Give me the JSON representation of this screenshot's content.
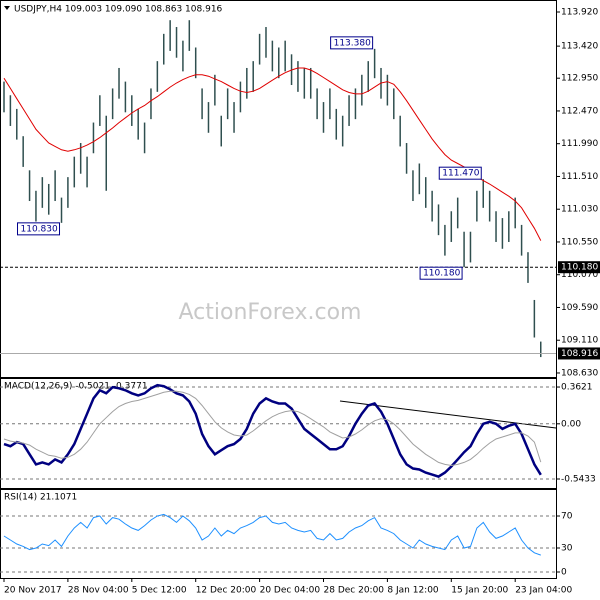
{
  "chart_data": [
    {
      "type": "hilo",
      "title": "USDJPY,H4  109.003 109.090 108.863 108.916",
      "watermark": "ActionForex.com",
      "categories": [
        "20 Nov 2017",
        null,
        null,
        null,
        null,
        null,
        null,
        null,
        null,
        null,
        "28 Nov 04:00",
        null,
        null,
        null,
        null,
        null,
        null,
        null,
        null,
        null,
        "5 Dec 12:00",
        null,
        null,
        null,
        null,
        null,
        null,
        null,
        null,
        null,
        "12 Dec 20:00",
        null,
        null,
        null,
        null,
        null,
        null,
        null,
        null,
        null,
        "20 Dec 04:00",
        null,
        null,
        null,
        null,
        null,
        null,
        null,
        null,
        null,
        "28 Dec 20:00",
        null,
        null,
        null,
        null,
        null,
        null,
        null,
        null,
        null,
        "8 Jan 12:00",
        null,
        null,
        null,
        null,
        null,
        null,
        null,
        null,
        null,
        "15 Jan 20:00",
        null,
        null,
        null,
        null,
        null,
        null,
        null,
        null,
        null,
        "23 Jan 04:00",
        null,
        null,
        null,
        null
      ],
      "high": [
        112.9,
        112.7,
        112.5,
        112.1,
        111.6,
        111.3,
        111.5,
        111.4,
        111.6,
        111.2,
        111.5,
        111.8,
        112.0,
        111.8,
        112.3,
        112.7,
        112.4,
        112.8,
        113.1,
        112.9,
        112.7,
        112.5,
        112.3,
        112.8,
        113.2,
        113.6,
        113.8,
        113.7,
        113.5,
        113.8,
        113.4,
        112.8,
        112.6,
        113.0,
        112.4,
        112.8,
        112.6,
        112.9,
        113.1,
        113.2,
        113.6,
        113.7,
        113.5,
        113.4,
        113.5,
        113.3,
        113.2,
        113.1,
        113.1,
        112.8,
        112.6,
        112.8,
        112.5,
        112.4,
        112.7,
        112.8,
        113.0,
        113.2,
        113.38,
        113.1,
        113.0,
        112.8,
        112.4,
        112.0,
        111.6,
        111.7,
        111.5,
        111.3,
        111.1,
        110.8,
        111.0,
        111.2,
        110.7,
        110.7,
        111.3,
        111.47,
        111.3,
        111.0,
        110.9,
        111.0,
        111.2,
        110.8,
        110.4,
        109.7,
        109.09
      ],
      "low": [
        112.45,
        112.25,
        112.05,
        111.65,
        111.15,
        110.85,
        111.05,
        110.95,
        111.15,
        110.83,
        111.05,
        111.35,
        111.55,
        111.35,
        111.85,
        112.25,
        111.3,
        112.35,
        112.65,
        112.45,
        112.25,
        112.05,
        111.85,
        112.35,
        112.75,
        113.15,
        113.35,
        113.25,
        113.05,
        113.35,
        112.95,
        112.35,
        112.15,
        112.55,
        111.95,
        112.35,
        112.15,
        112.45,
        112.65,
        112.75,
        113.15,
        113.25,
        113.05,
        112.95,
        113.05,
        112.85,
        112.75,
        112.65,
        112.65,
        112.35,
        112.15,
        112.35,
        112.05,
        111.95,
        112.25,
        112.35,
        112.55,
        112.75,
        112.95,
        112.65,
        112.55,
        112.35,
        111.95,
        111.55,
        111.15,
        111.25,
        111.05,
        110.85,
        110.65,
        110.35,
        110.55,
        110.75,
        110.18,
        110.25,
        110.85,
        111.05,
        110.85,
        110.55,
        110.45,
        110.55,
        110.75,
        110.35,
        109.95,
        109.15,
        108.863
      ],
      "color": "#2f4f4f",
      "ma": {
        "color": "#e00000",
        "values": [
          112.95,
          112.8,
          112.65,
          112.5,
          112.35,
          112.2,
          112.1,
          112.0,
          111.95,
          111.9,
          111.88,
          111.9,
          111.93,
          111.97,
          112.02,
          112.08,
          112.15,
          112.22,
          112.3,
          112.37,
          112.44,
          112.5,
          112.55,
          112.62,
          112.68,
          112.75,
          112.82,
          112.88,
          112.93,
          112.97,
          113.0,
          113.0,
          112.98,
          112.94,
          112.9,
          112.85,
          112.8,
          112.76,
          112.74,
          112.76,
          112.8,
          112.86,
          112.92,
          112.98,
          113.03,
          113.07,
          113.1,
          113.1,
          113.07,
          113.02,
          112.96,
          112.9,
          112.84,
          112.78,
          112.74,
          112.72,
          112.72,
          112.76,
          112.82,
          112.88,
          112.9,
          112.86,
          112.75,
          112.62,
          112.48,
          112.34,
          112.2,
          112.06,
          111.94,
          111.83,
          111.75,
          111.7,
          111.65,
          111.58,
          111.5,
          111.45,
          111.4,
          111.34,
          111.28,
          111.22,
          111.15,
          111.05,
          110.9,
          110.75,
          110.57
        ]
      },
      "annotations": [
        {
          "value": 113.38,
          "label": "113.380"
        },
        {
          "value": 111.47,
          "label": "111.470"
        },
        {
          "value": 110.83,
          "label": "110.830"
        },
        {
          "value": 110.18,
          "label": "110.180"
        }
      ],
      "hline": {
        "value": 110.18,
        "label": "110.180"
      },
      "last": {
        "value": 108.916,
        "label": "108.916"
      },
      "ylim": [
        108.571,
        114.096
      ],
      "yticks": [
        {
          "value": 113.92,
          "label": "113.920"
        },
        {
          "value": 113.42,
          "label": "113.420"
        },
        {
          "value": 112.95,
          "label": "112.950"
        },
        {
          "value": 112.47,
          "label": "112.470"
        },
        {
          "value": 111.99,
          "label": "111.990"
        },
        {
          "value": 111.51,
          "label": "111.510"
        },
        {
          "value": 111.03,
          "label": "111.030"
        },
        {
          "value": 110.55,
          "label": "110.550"
        },
        {
          "value": 110.07,
          "label": "110.070"
        },
        {
          "value": 109.59,
          "label": "109.590"
        },
        {
          "value": 109.11,
          "label": "109.110"
        },
        {
          "value": 108.63,
          "label": "108.630"
        }
      ]
    },
    {
      "type": "line",
      "title": "MACD(12,26,9) -0.5021 -0.3771",
      "series": [
        {
          "color": "#000080",
          "values": [
            -0.2,
            -0.22,
            -0.18,
            -0.2,
            -0.3,
            -0.4,
            -0.38,
            -0.4,
            -0.35,
            -0.38,
            -0.3,
            -0.2,
            -0.05,
            0.1,
            0.25,
            0.33,
            0.3,
            0.36,
            0.35,
            0.33,
            0.3,
            0.28,
            0.3,
            0.35,
            0.38,
            0.37,
            0.34,
            0.3,
            0.28,
            0.22,
            0.1,
            -0.1,
            -0.22,
            -0.3,
            -0.26,
            -0.22,
            -0.2,
            -0.15,
            -0.05,
            0.1,
            0.2,
            0.25,
            0.22,
            0.2,
            0.2,
            0.15,
            0.05,
            -0.05,
            -0.1,
            -0.15,
            -0.2,
            -0.25,
            -0.25,
            -0.22,
            -0.12,
            0.0,
            0.1,
            0.18,
            0.2,
            0.12,
            0.0,
            -0.15,
            -0.3,
            -0.4,
            -0.44,
            -0.45,
            -0.48,
            -0.5,
            -0.52,
            -0.48,
            -0.42,
            -0.35,
            -0.28,
            -0.22,
            -0.1,
            0.0,
            0.02,
            0.0,
            -0.05,
            -0.02,
            0.0,
            -0.1,
            -0.25,
            -0.4,
            -0.5021
          ]
        },
        {
          "color": "#a0a0a0",
          "values": [
            -0.15,
            -0.17,
            -0.18,
            -0.19,
            -0.21,
            -0.25,
            -0.28,
            -0.31,
            -0.32,
            -0.34,
            -0.33,
            -0.3,
            -0.25,
            -0.18,
            -0.09,
            0.0,
            0.06,
            0.12,
            0.17,
            0.2,
            0.22,
            0.23,
            0.25,
            0.27,
            0.29,
            0.31,
            0.32,
            0.32,
            0.31,
            0.29,
            0.25,
            0.18,
            0.1,
            0.02,
            -0.04,
            -0.08,
            -0.11,
            -0.12,
            -0.11,
            -0.07,
            -0.02,
            0.03,
            0.07,
            0.1,
            0.12,
            0.13,
            0.12,
            0.09,
            0.05,
            0.01,
            -0.03,
            -0.08,
            -0.11,
            -0.14,
            -0.13,
            -0.1,
            -0.06,
            -0.01,
            0.03,
            0.05,
            0.04,
            0.0,
            -0.06,
            -0.13,
            -0.2,
            -0.25,
            -0.3,
            -0.34,
            -0.38,
            -0.4,
            -0.41,
            -0.4,
            -0.38,
            -0.35,
            -0.3,
            -0.24,
            -0.19,
            -0.15,
            -0.13,
            -0.11,
            -0.09,
            -0.09,
            -0.12,
            -0.18,
            -0.3771
          ]
        }
      ],
      "ylim": [
        -0.632,
        0.451
      ],
      "yticks": [
        0.3621,
        {
          "value": 0,
          "label": "0.00"
        },
        -0.5433
      ]
    },
    {
      "type": "line",
      "title": "RSI(14) 21.1071",
      "series": [
        {
          "color": "#1e90ff",
          "values": [
            45,
            40,
            35,
            32,
            28,
            30,
            35,
            33,
            40,
            32,
            45,
            55,
            62,
            55,
            68,
            70,
            60,
            68,
            66,
            60,
            55,
            52,
            58,
            65,
            70,
            72,
            68,
            62,
            70,
            64,
            55,
            40,
            45,
            55,
            45,
            52,
            48,
            55,
            58,
            62,
            68,
            70,
            62,
            60,
            62,
            55,
            52,
            50,
            52,
            42,
            40,
            48,
            40,
            42,
            50,
            55,
            58,
            64,
            68,
            55,
            52,
            48,
            40,
            35,
            30,
            40,
            35,
            32,
            30,
            28,
            40,
            45,
            30,
            32,
            55,
            62,
            50,
            42,
            45,
            50,
            55,
            40,
            30,
            24,
            21.1071
          ]
        }
      ],
      "ylim": [
        -7.5,
        102.5
      ],
      "yticks": [
        70,
        30,
        0
      ]
    }
  ]
}
